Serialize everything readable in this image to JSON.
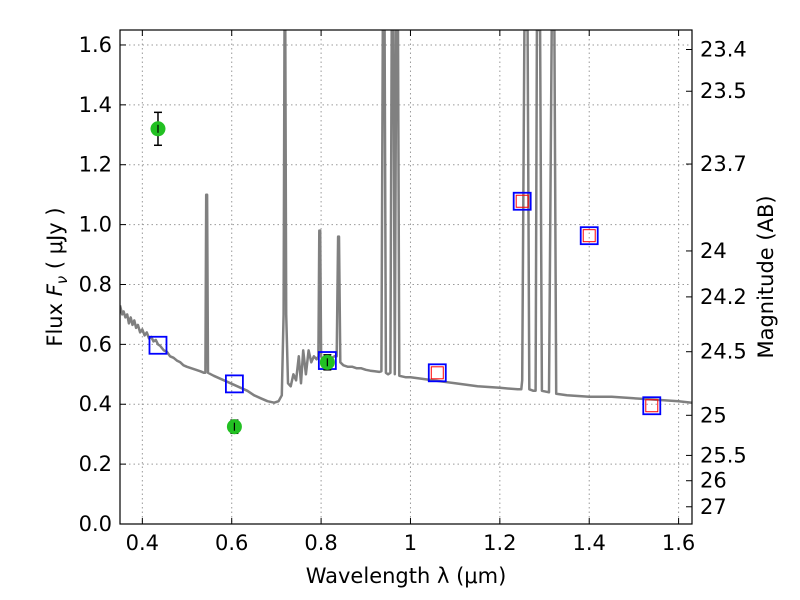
{
  "chart_data": {
    "type": "scatter",
    "xlabel": "Wavelength  λ (μm)",
    "ylabel": "Flux  F_ν  ( μJy )",
    "ylabel_parts": {
      "prefix": "Flux  ",
      "symbol": "F",
      "subscript": "ν",
      "suffix": "  ( μJy )"
    },
    "y2label": "Magnitude (AB)",
    "xlim": [
      0.35,
      1.63
    ],
    "ylim": [
      0.0,
      1.65
    ],
    "grid": true,
    "x_ticks": [
      {
        "value": 0.4,
        "label": "0.4"
      },
      {
        "value": 0.6,
        "label": "0.6"
      },
      {
        "value": 0.8,
        "label": "0.8"
      },
      {
        "value": 1.0,
        "label": "1"
      },
      {
        "value": 1.2,
        "label": "1.2"
      },
      {
        "value": 1.4,
        "label": "1.4"
      },
      {
        "value": 1.6,
        "label": "1.6"
      }
    ],
    "y_ticks": [
      {
        "value": 0.0,
        "label": "0.0"
      },
      {
        "value": 0.2,
        "label": "0.2"
      },
      {
        "value": 0.4,
        "label": "0.4"
      },
      {
        "value": 0.6,
        "label": "0.6"
      },
      {
        "value": 0.8,
        "label": "0.8"
      },
      {
        "value": 1.0,
        "label": "1.0"
      },
      {
        "value": 1.2,
        "label": "1.2"
      },
      {
        "value": 1.4,
        "label": "1.4"
      },
      {
        "value": 1.6,
        "label": "1.6"
      }
    ],
    "mag_ticks": [
      {
        "mag": 23.4,
        "label": "23.4"
      },
      {
        "mag": 23.5,
        "label": "23.5"
      },
      {
        "mag": 23.7,
        "label": "23.7"
      },
      {
        "mag": 24.0,
        "label": "24"
      },
      {
        "mag": 24.2,
        "label": "24.2"
      },
      {
        "mag": 24.5,
        "label": "24.5"
      },
      {
        "mag": 25.0,
        "label": "25"
      },
      {
        "mag": 25.5,
        "label": "25.5"
      },
      {
        "mag": 26.0,
        "label": "26"
      },
      {
        "mag": 27.0,
        "label": "27"
      }
    ],
    "colors": {
      "sed": "#808080",
      "observed": "#22c022",
      "model_box": "#0000ff",
      "model_inner": "#ff0000",
      "grid": "#9a9a9a"
    },
    "series": [
      {
        "name": "observed",
        "style": "circle-errorbar",
        "points": [
          {
            "x": 0.435,
            "y": 1.32,
            "err": 0.055
          },
          {
            "x": 0.606,
            "y": 0.325,
            "err": 0.022
          },
          {
            "x": 0.814,
            "y": 0.54,
            "err": 0.025
          }
        ]
      },
      {
        "name": "model-photometry",
        "style": "square",
        "points": [
          {
            "x": 0.435,
            "y": 0.597
          },
          {
            "x": 0.606,
            "y": 0.468
          },
          {
            "x": 0.814,
            "y": 0.546
          }
        ]
      },
      {
        "name": "model-photometry-ir",
        "style": "square-double",
        "points": [
          {
            "x": 1.06,
            "y": 0.505
          },
          {
            "x": 1.25,
            "y": 1.078
          },
          {
            "x": 1.4,
            "y": 0.963
          },
          {
            "x": 1.54,
            "y": 0.395
          }
        ]
      },
      {
        "name": "sed-model",
        "style": "line",
        "points": [
          [
            0.35,
            0.73
          ],
          [
            0.355,
            0.7
          ],
          [
            0.358,
            0.71
          ],
          [
            0.362,
            0.69
          ],
          [
            0.366,
            0.7
          ],
          [
            0.37,
            0.67
          ],
          [
            0.374,
            0.69
          ],
          [
            0.378,
            0.665
          ],
          [
            0.382,
            0.68
          ],
          [
            0.386,
            0.655
          ],
          [
            0.39,
            0.665
          ],
          [
            0.395,
            0.64
          ],
          [
            0.4,
            0.65
          ],
          [
            0.405,
            0.63
          ],
          [
            0.41,
            0.64
          ],
          [
            0.415,
            0.62
          ],
          [
            0.42,
            0.625
          ],
          [
            0.425,
            0.61
          ],
          [
            0.43,
            0.615
          ],
          [
            0.435,
            0.6
          ],
          [
            0.44,
            0.595
          ],
          [
            0.448,
            0.58
          ],
          [
            0.455,
            0.575
          ],
          [
            0.462,
            0.56
          ],
          [
            0.47,
            0.555
          ],
          [
            0.478,
            0.545
          ],
          [
            0.485,
            0.54
          ],
          [
            0.492,
            0.53
          ],
          [
            0.5,
            0.525
          ],
          [
            0.51,
            0.52
          ],
          [
            0.52,
            0.515
          ],
          [
            0.53,
            0.51
          ],
          [
            0.538,
            0.505
          ],
          [
            0.541,
            0.505
          ],
          [
            0.543,
            1.1
          ],
          [
            0.545,
            1.1
          ],
          [
            0.547,
            0.505
          ],
          [
            0.56,
            0.495
          ],
          [
            0.575,
            0.485
          ],
          [
            0.59,
            0.475
          ],
          [
            0.605,
            0.465
          ],
          [
            0.62,
            0.455
          ],
          [
            0.635,
            0.445
          ],
          [
            0.65,
            0.43
          ],
          [
            0.665,
            0.42
          ],
          [
            0.68,
            0.41
          ],
          [
            0.695,
            0.405
          ],
          [
            0.705,
            0.41
          ],
          [
            0.712,
            0.43
          ],
          [
            0.716,
            0.7
          ],
          [
            0.718,
            1.65
          ],
          [
            0.72,
            1.65
          ],
          [
            0.722,
            0.7
          ],
          [
            0.726,
            0.47
          ],
          [
            0.732,
            0.46
          ],
          [
            0.738,
            0.5
          ],
          [
            0.744,
            0.48
          ],
          [
            0.75,
            0.56
          ],
          [
            0.755,
            0.47
          ],
          [
            0.76,
            0.58
          ],
          [
            0.766,
            0.5
          ],
          [
            0.772,
            0.58
          ],
          [
            0.778,
            0.54
          ],
          [
            0.784,
            0.56
          ],
          [
            0.79,
            0.55
          ],
          [
            0.794,
            0.56
          ],
          [
            0.796,
            0.98
          ],
          [
            0.798,
            0.98
          ],
          [
            0.8,
            0.56
          ],
          [
            0.806,
            0.54
          ],
          [
            0.812,
            0.54
          ],
          [
            0.818,
            0.545
          ],
          [
            0.824,
            0.555
          ],
          [
            0.83,
            0.56
          ],
          [
            0.835,
            0.56
          ],
          [
            0.838,
            0.96
          ],
          [
            0.84,
            0.96
          ],
          [
            0.843,
            0.54
          ],
          [
            0.85,
            0.53
          ],
          [
            0.86,
            0.525
          ],
          [
            0.87,
            0.525
          ],
          [
            0.88,
            0.52
          ],
          [
            0.89,
            0.52
          ],
          [
            0.9,
            0.515
          ],
          [
            0.91,
            0.512
          ],
          [
            0.92,
            0.51
          ],
          [
            0.93,
            0.508
          ],
          [
            0.935,
            0.51
          ],
          [
            0.938,
            1.65
          ],
          [
            0.942,
            1.65
          ],
          [
            0.945,
            0.505
          ],
          [
            0.95,
            0.5
          ],
          [
            0.955,
            0.505
          ],
          [
            0.958,
            1.65
          ],
          [
            0.962,
            1.65
          ],
          [
            0.965,
            0.5
          ],
          [
            0.968,
            1.65
          ],
          [
            0.972,
            1.65
          ],
          [
            0.975,
            0.495
          ],
          [
            0.99,
            0.49
          ],
          [
            1.0,
            0.49
          ],
          [
            1.05,
            0.48
          ],
          [
            1.1,
            0.47
          ],
          [
            1.15,
            0.46
          ],
          [
            1.2,
            0.455
          ],
          [
            1.24,
            0.45
          ],
          [
            1.248,
            0.45
          ],
          [
            1.25,
            0.48
          ],
          [
            1.255,
            1.65
          ],
          [
            1.262,
            1.65
          ],
          [
            1.266,
            0.45
          ],
          [
            1.275,
            0.445
          ],
          [
            1.28,
            0.445
          ],
          [
            1.283,
            1.65
          ],
          [
            1.29,
            1.65
          ],
          [
            1.294,
            0.445
          ],
          [
            1.31,
            0.44
          ],
          [
            1.316,
            1.65
          ],
          [
            1.322,
            1.65
          ],
          [
            1.326,
            0.435
          ],
          [
            1.35,
            0.43
          ],
          [
            1.4,
            0.425
          ],
          [
            1.45,
            0.425
          ],
          [
            1.5,
            0.42
          ],
          [
            1.55,
            0.415
          ],
          [
            1.6,
            0.41
          ],
          [
            1.63,
            0.405
          ]
        ]
      }
    ]
  }
}
